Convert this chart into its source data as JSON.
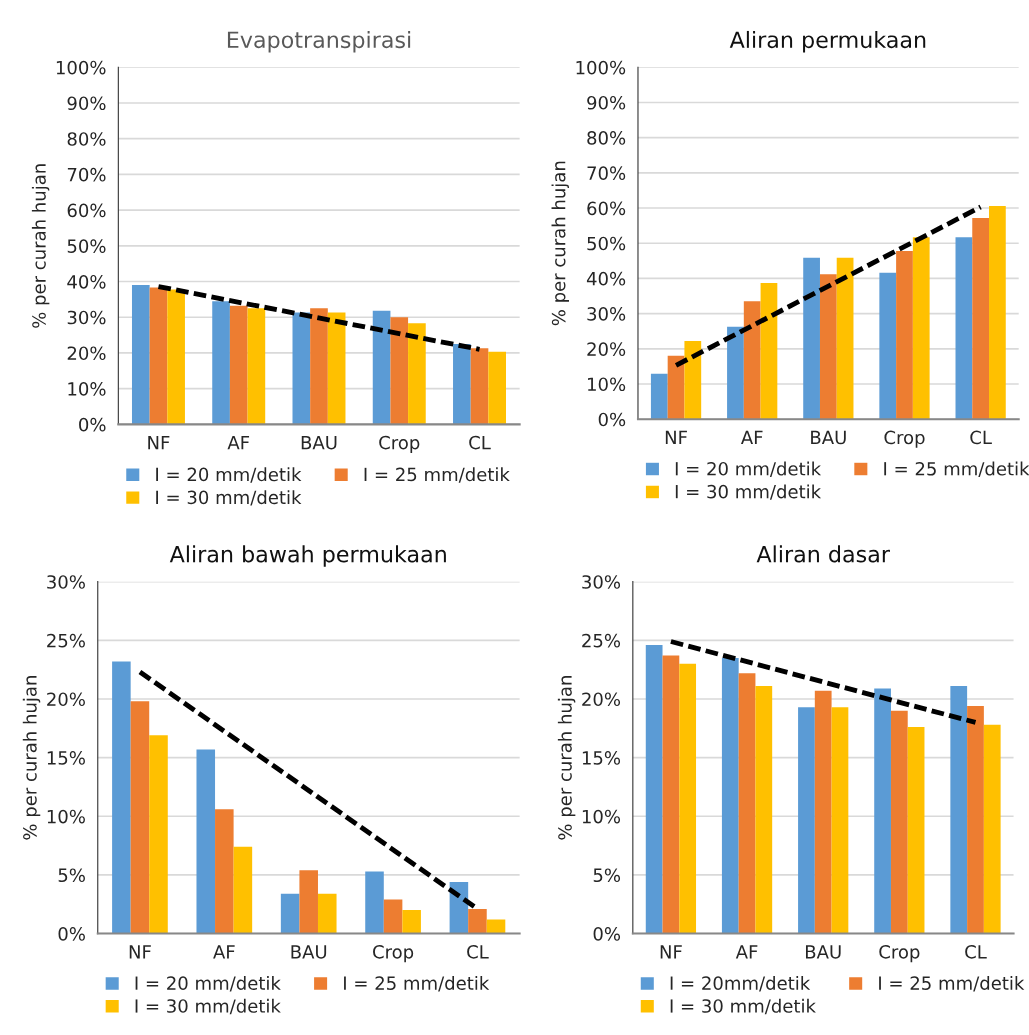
{
  "chart_data": [
    {
      "type": "bar",
      "title": "Evapotranspirasi",
      "ylabel": "% per curah hujan",
      "categories": [
        "NF",
        "AF",
        "BAU",
        "Crop",
        "CL"
      ],
      "series": [
        {
          "name": "I = 20 mm/detik",
          "color": "#5b9bd5",
          "values": [
            39,
            34.5,
            31.3,
            31.8,
            22.5
          ]
        },
        {
          "name": "I = 25 mm/detik",
          "color": "#ed7d31",
          "values": [
            38.3,
            33.2,
            32.5,
            30,
            21.3
          ]
        },
        {
          "name": "I = 30 mm/detik",
          "color": "#ffc000",
          "values": [
            37.8,
            32.5,
            31.3,
            28.3,
            20.3
          ]
        },
        {
          "type": "line",
          "x": [
            "NF",
            "CL"
          ],
          "values": [
            38.6,
            21
          ],
          "color": "#000000",
          "line_style": "dashed"
        }
      ],
      "ylim": [
        0,
        100
      ],
      "yticks": [
        {
          "value": 0,
          "label": "0%"
        },
        {
          "value": 10,
          "label": "10%"
        },
        {
          "value": 20,
          "label": "20%"
        },
        {
          "value": 30,
          "label": "30%"
        },
        {
          "value": 40,
          "label": "40%"
        },
        {
          "value": 50,
          "label": "50%"
        },
        {
          "value": 60,
          "label": "60%"
        },
        {
          "value": 70,
          "label": "70%"
        },
        {
          "value": 80,
          "label": "80%"
        },
        {
          "value": 90,
          "label": "90%"
        },
        {
          "value": 100,
          "label": "100%"
        }
      ],
      "grid": "y",
      "legend": "bottom"
    },
    {
      "type": "bar",
      "title": "Aliran permukaan",
      "ylabel": "% per curah hujan",
      "categories": [
        "NF",
        "AF",
        "BAU",
        "Crop",
        "CL"
      ],
      "series": [
        {
          "name": "I = 20 mm/detik",
          "color": "#5b9bd5",
          "values": [
            12.9,
            26.3,
            45.9,
            41.6,
            51.7
          ]
        },
        {
          "name": "I = 25 mm/detik",
          "color": "#ed7d31",
          "values": [
            18,
            33.5,
            41.2,
            47.8,
            57.2
          ]
        },
        {
          "name": "I = 30 mm/detik",
          "color": "#ffc000",
          "values": [
            22.2,
            38.7,
            45.9,
            51.7,
            60.6
          ]
        },
        {
          "type": "line",
          "x": [
            "NF",
            "CL"
          ],
          "values": [
            15.3,
            60.3
          ],
          "color": "#000000",
          "line_style": "dashed"
        }
      ],
      "ylim": [
        0,
        100
      ],
      "yticks": [
        {
          "value": 0,
          "label": "0%"
        },
        {
          "value": 10,
          "label": "10%"
        },
        {
          "value": 20,
          "label": "20%"
        },
        {
          "value": 30,
          "label": "30%"
        },
        {
          "value": 40,
          "label": "40%"
        },
        {
          "value": 50,
          "label": "50%"
        },
        {
          "value": 60,
          "label": "60%"
        },
        {
          "value": 70,
          "label": "70%"
        },
        {
          "value": 80,
          "label": "80%"
        },
        {
          "value": 90,
          "label": "90%"
        },
        {
          "value": 100,
          "label": "100%"
        }
      ],
      "grid": "y",
      "legend": "bottom"
    },
    {
      "type": "bar",
      "title": "Aliran bawah permukaan",
      "ylabel": "% per curah hujan",
      "categories": [
        "NF",
        "AF",
        "BAU",
        "Crop",
        "CL"
      ],
      "series": [
        {
          "name": "I = 20 mm/detik",
          "color": "#5b9bd5",
          "values": [
            23.2,
            15.7,
            3.4,
            5.3,
            4.4
          ]
        },
        {
          "name": "I = 25 mm/detik",
          "color": "#ed7d31",
          "values": [
            19.8,
            10.6,
            5.4,
            2.9,
            2.1
          ]
        },
        {
          "name": "I = 30 mm/detik",
          "color": "#ffc000",
          "values": [
            16.9,
            7.4,
            3.4,
            2.0,
            1.2
          ]
        },
        {
          "type": "line",
          "x": [
            "NF",
            "CL"
          ],
          "values": [
            22.3,
            2.1
          ],
          "color": "#000000",
          "line_style": "dashed"
        }
      ],
      "ylim": [
        0,
        30
      ],
      "yticks": [
        {
          "value": 0,
          "label": "0%"
        },
        {
          "value": 5,
          "label": "5%"
        },
        {
          "value": 10,
          "label": "10%"
        },
        {
          "value": 15,
          "label": "15%"
        },
        {
          "value": 20,
          "label": "20%"
        },
        {
          "value": 25,
          "label": "25%"
        },
        {
          "value": 30,
          "label": "30%"
        }
      ],
      "grid": "y",
      "legend": "bottom"
    },
    {
      "type": "bar",
      "title": "Aliran dasar",
      "ylabel": "% per curah hujan",
      "categories": [
        "NF",
        "AF",
        "BAU",
        "Crop",
        "CL"
      ],
      "series": [
        {
          "name": "I = 20mm/detik",
          "color": "#5b9bd5",
          "values": [
            24.6,
            23.5,
            19.3,
            20.9,
            21.1
          ]
        },
        {
          "name": "I = 25 mm/detik",
          "color": "#ed7d31",
          "values": [
            23.7,
            22.2,
            20.7,
            19.0,
            19.4
          ]
        },
        {
          "name": "I = 30 mm/detik",
          "color": "#ffc000",
          "values": [
            23.0,
            21.1,
            19.3,
            17.6,
            17.8
          ]
        },
        {
          "type": "line",
          "x": [
            "NF",
            "CL"
          ],
          "values": [
            24.9,
            18.0
          ],
          "color": "#000000",
          "line_style": "dashed"
        }
      ],
      "ylim": [
        0,
        30
      ],
      "yticks": [
        {
          "value": 0,
          "label": "0%"
        },
        {
          "value": 5,
          "label": "5%"
        },
        {
          "value": 10,
          "label": "10%"
        },
        {
          "value": 15,
          "label": "15%"
        },
        {
          "value": 20,
          "label": "20%"
        },
        {
          "value": 25,
          "label": "25%"
        },
        {
          "value": 30,
          "label": "30%"
        }
      ],
      "grid": "y",
      "legend": "bottom"
    }
  ]
}
